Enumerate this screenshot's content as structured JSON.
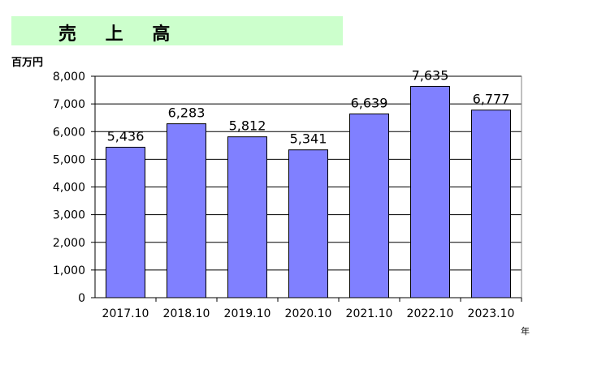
{
  "title": "売 上 高",
  "unit_label": "百万円",
  "year_label": "年",
  "chart_data": {
    "type": "bar",
    "title": "売 上 高",
    "ylabel": "百万円",
    "xlabel": "年",
    "categories": [
      "2017.10",
      "2018.10",
      "2019.10",
      "2020.10",
      "2021.10",
      "2022.10",
      "2023.10"
    ],
    "values": [
      5436,
      6283,
      5812,
      5341,
      6639,
      7635,
      6777
    ],
    "data_labels": [
      "5,436",
      "6,283",
      "5,812",
      "5,341",
      "6,639",
      "7,635",
      "6,777"
    ],
    "yticks": [
      "0",
      "1,000",
      "2,000",
      "3,000",
      "4,000",
      "5,000",
      "6,000",
      "7,000",
      "8,000"
    ],
    "ylim": [
      0,
      8000
    ],
    "grid": true,
    "bar_color": "#8080ff"
  }
}
